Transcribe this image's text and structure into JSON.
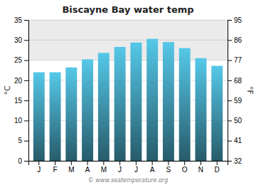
{
  "chart_data": {
    "type": "bar",
    "title": "Biscayne Bay water temp",
    "categories": [
      "J",
      "F",
      "M",
      "A",
      "M",
      "J",
      "J",
      "A",
      "S",
      "O",
      "N",
      "D"
    ],
    "values": [
      22.0,
      22.0,
      23.2,
      25.2,
      26.8,
      28.3,
      29.4,
      30.3,
      29.5,
      28.0,
      25.5,
      23.6
    ],
    "color": "#55c8e8",
    "ylabel": "°C",
    "y2label": "°F",
    "ylim": [
      0,
      35
    ],
    "yticks": [
      0,
      5,
      10,
      15,
      20,
      25,
      30,
      35
    ],
    "y2lim": [
      32,
      95
    ],
    "y2ticks": [
      32,
      41,
      50,
      59,
      68,
      77,
      86,
      95
    ],
    "highlight_band": [
      25,
      35
    ],
    "annotation": "© www.seatemperature.org",
    "grid": true
  }
}
